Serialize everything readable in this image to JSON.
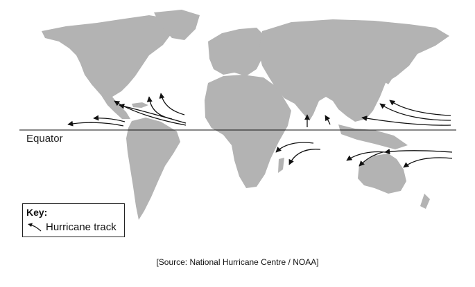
{
  "map": {
    "land_color": "#b3b3b3",
    "track_color": "#111111"
  },
  "labels": {
    "equator": "Equator"
  },
  "key": {
    "title": "Key:",
    "items": [
      {
        "label": "Hurricane track",
        "icon": "arrow-left-icon"
      }
    ]
  },
  "source": "[Source: National Hurricane Centre / NOAA]"
}
